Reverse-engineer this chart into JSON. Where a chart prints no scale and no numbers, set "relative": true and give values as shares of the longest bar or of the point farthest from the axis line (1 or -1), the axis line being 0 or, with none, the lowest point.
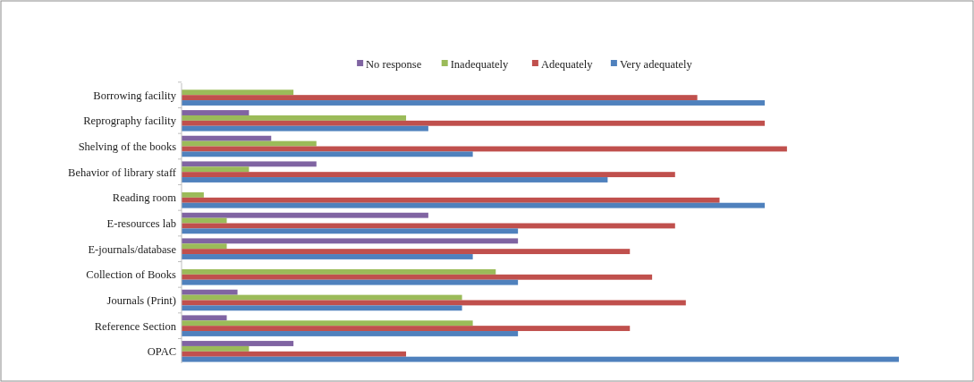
{
  "chart_data": {
    "type": "bar",
    "orientation": "horizontal",
    "relative": true,
    "legend": "top",
    "categories": [
      "Borrowing facility",
      "Reprography facility",
      "Shelving of the books",
      "Behavior of library staff",
      "Reading room",
      "E-resources lab",
      "E-journals/database",
      "Collection of Books",
      "Journals (Print)",
      "Reference Section",
      "OPAC"
    ],
    "series": [
      {
        "name": "No response",
        "color": "#8064a2",
        "values": [
          0,
          0.094,
          0.125,
          0.188,
          0,
          0.344,
          0.469,
          0,
          0.078,
          0.063,
          0.156
        ]
      },
      {
        "name": "Inadequately",
        "color": "#9bbb59",
        "values": [
          0.156,
          0.313,
          0.188,
          0.094,
          0.031,
          0.063,
          0.063,
          0.438,
          0.391,
          0.406,
          0.094
        ]
      },
      {
        "name": "Adequately",
        "color": "#c0504d",
        "values": [
          0.719,
          0.813,
          0.844,
          0.688,
          0.75,
          0.688,
          0.625,
          0.656,
          0.703,
          0.625,
          0.313
        ]
      },
      {
        "name": "Very adequately",
        "color": "#4f81bd",
        "values": [
          0.813,
          0.344,
          0.406,
          0.594,
          0.813,
          0.469,
          0.406,
          0.469,
          0.391,
          0.469,
          1
        ]
      }
    ]
  }
}
